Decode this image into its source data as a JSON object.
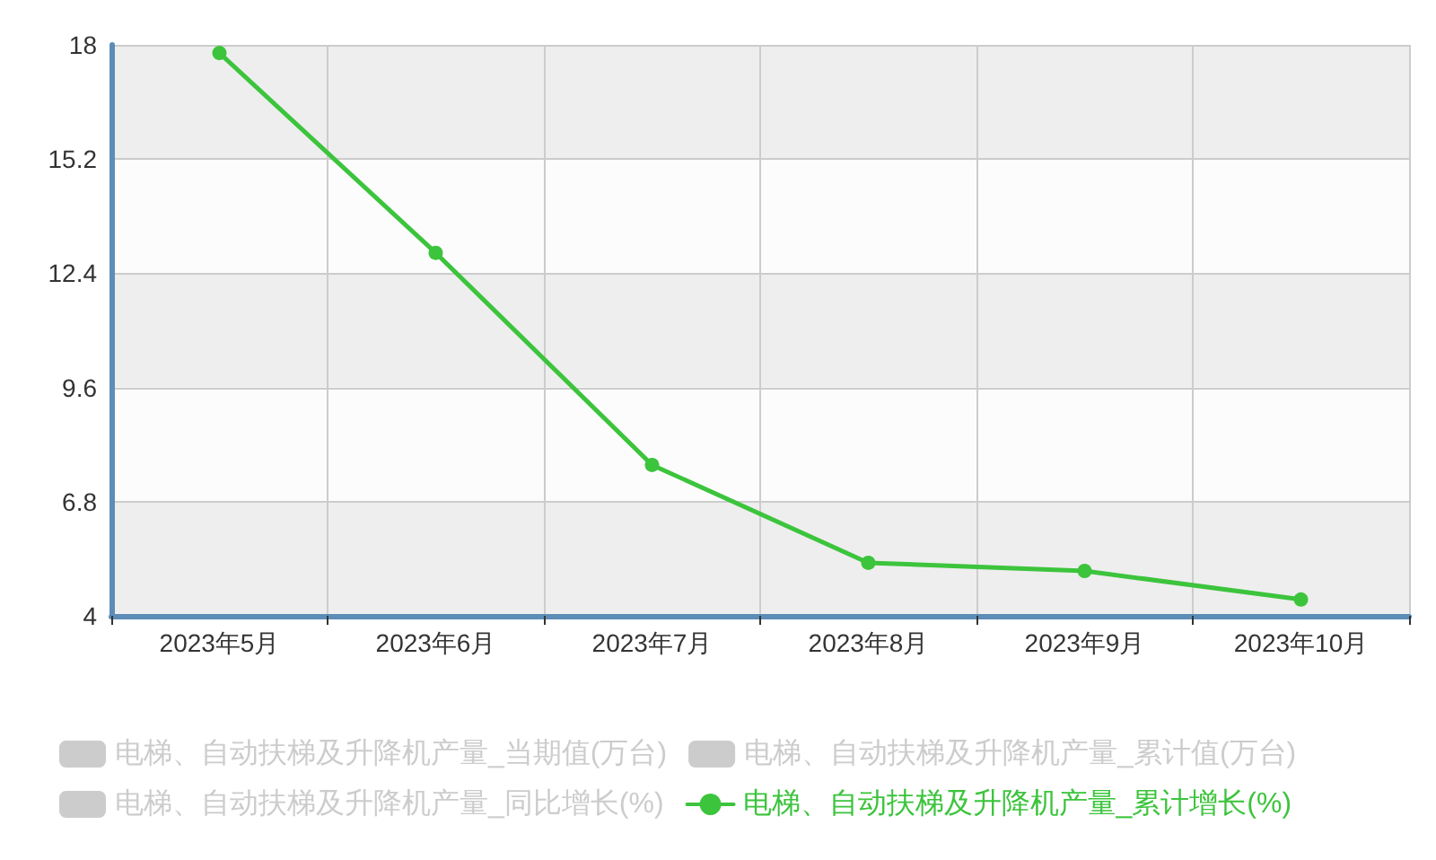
{
  "chart_data": {
    "type": "line",
    "categories": [
      "2023年5月",
      "2023年6月",
      "2023年7月",
      "2023年8月",
      "2023年9月",
      "2023年10月"
    ],
    "series": [
      {
        "name": "电梯、自动扶梯及升降机产量_当期值(万台)",
        "type": "bar",
        "color": "#cccccc",
        "values": [
          null,
          null,
          null,
          null,
          null,
          null
        ]
      },
      {
        "name": "电梯、自动扶梯及升降机产量_累计值(万台)",
        "type": "bar",
        "color": "#cccccc",
        "values": [
          null,
          null,
          null,
          null,
          null,
          null
        ]
      },
      {
        "name": "电梯、自动扶梯及升降机产量_同比增长(%)",
        "type": "bar",
        "color": "#cccccc",
        "values": [
          null,
          null,
          null,
          null,
          null,
          null
        ]
      },
      {
        "name": "电梯、自动扶梯及升降机产量_累计增长(%)",
        "color": "#3cc43c",
        "values": [
          17.8,
          12.9,
          7.7,
          5.3,
          5.1,
          4.4
        ]
      }
    ],
    "ylim": [
      4,
      18
    ],
    "yticks": [
      4,
      6.8,
      9.6,
      12.4,
      15.2,
      18
    ],
    "grid": true,
    "legend": "bottom",
    "marker": "circle",
    "line_style": "solid"
  }
}
